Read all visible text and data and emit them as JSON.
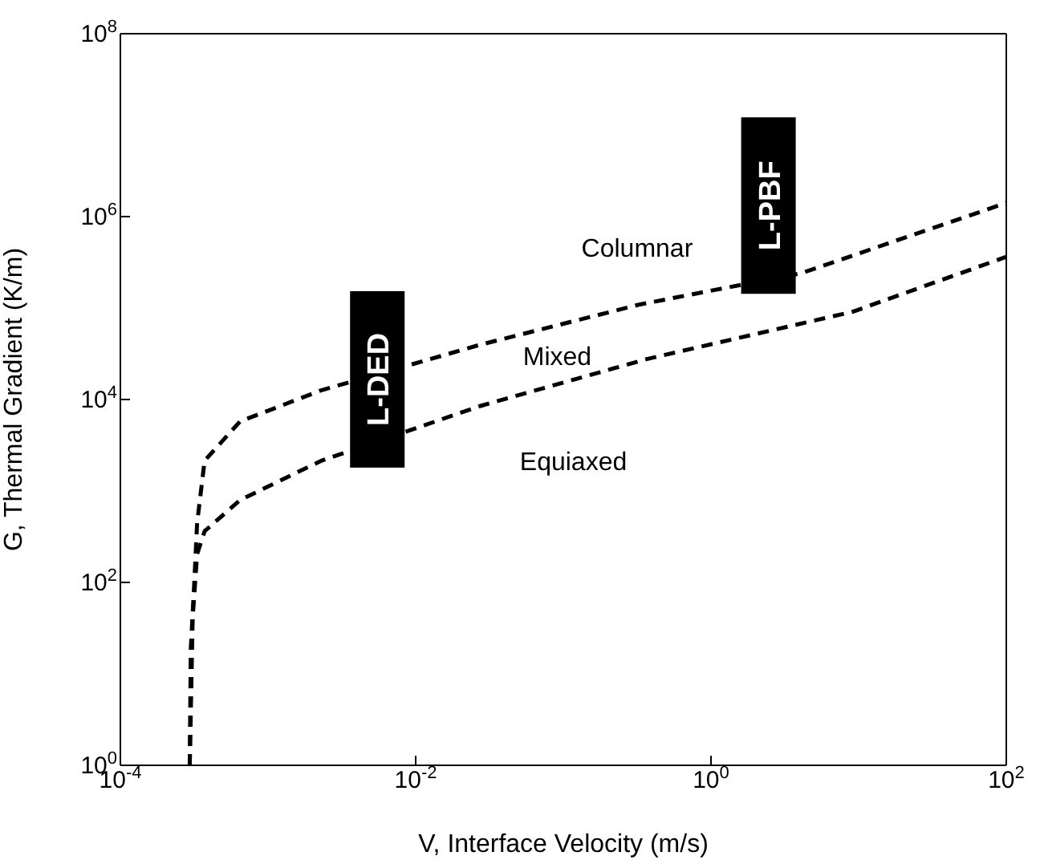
{
  "chart_data": {
    "type": "line",
    "xlabel": "V, Interface Velocity (m/s)",
    "ylabel": "G, Thermal Gradient (K/m)",
    "log": "xy",
    "line_style": "dashed",
    "marker": "none",
    "xlim": [
      0.0001,
      100
    ],
    "ylim": [
      1,
      100000000
    ],
    "xticks": [
      {
        "value": 0.0001,
        "label": "10$^{-4}$"
      },
      {
        "value": 0.01,
        "label": "10$^{-2}$"
      },
      {
        "value": 1,
        "label": "10$^{0}$"
      },
      {
        "value": 100,
        "label": "10$^{2}$"
      }
    ],
    "yticks": [
      {
        "value": 1,
        "label": "10$^{0}$"
      },
      {
        "value": 100,
        "label": "10$^{2}$"
      },
      {
        "value": 10000,
        "label": "10$^{4}$"
      },
      {
        "value": 1000000,
        "label": "10$^{6}$"
      },
      {
        "value": 100000000,
        "label": "10$^{8}$"
      }
    ],
    "series": [
      {
        "color": "#000000",
        "x": [
          0.000295,
          0.0003,
          0.000316,
          0.000331,
          0.000372,
          0.000646,
          0.00229,
          0.0275,
          0.331,
          4.07,
          100
        ],
        "values": [
          1,
          19,
          93,
          447,
          2138,
          5754,
          12589,
          39811,
          109648,
          239883,
          1412538
        ]
      },
      {
        "color": "#000000",
        "x": [
          0.000295,
          0.000309,
          0.000331,
          0.000372,
          0.000646,
          0.00229,
          0.0275,
          0.363,
          9.12,
          100
        ],
        "values": [
          1,
          42,
          204,
          363,
          794,
          2138,
          8511,
          27542,
          91201,
          363078
        ]
      }
    ],
    "annotations": [
      "Columnar",
      "Mixed",
      "Equiaxed",
      "L-DED",
      "L-PBF"
    ]
  }
}
